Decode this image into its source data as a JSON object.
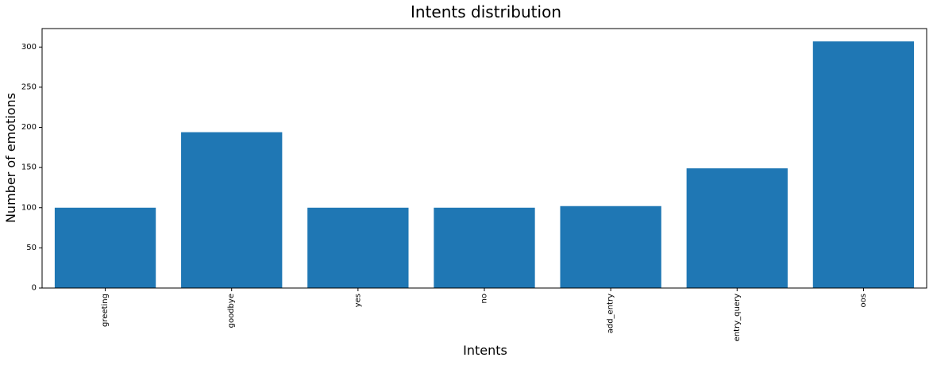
{
  "chart_data": {
    "type": "bar",
    "title": "Intents distribution",
    "xlabel": "Intents",
    "ylabel": "Number of emotions",
    "categories": [
      "greeting",
      "goodbye",
      "yes",
      "no",
      "add_entry",
      "entry_query",
      "oos"
    ],
    "values": [
      100,
      194,
      100,
      100,
      102,
      149,
      307
    ],
    "ylim": [
      0,
      323
    ],
    "yticks": [
      0,
      50,
      100,
      150,
      200,
      250,
      300
    ],
    "grid": false,
    "legend": "none",
    "bar_color": "#1f77b4"
  }
}
